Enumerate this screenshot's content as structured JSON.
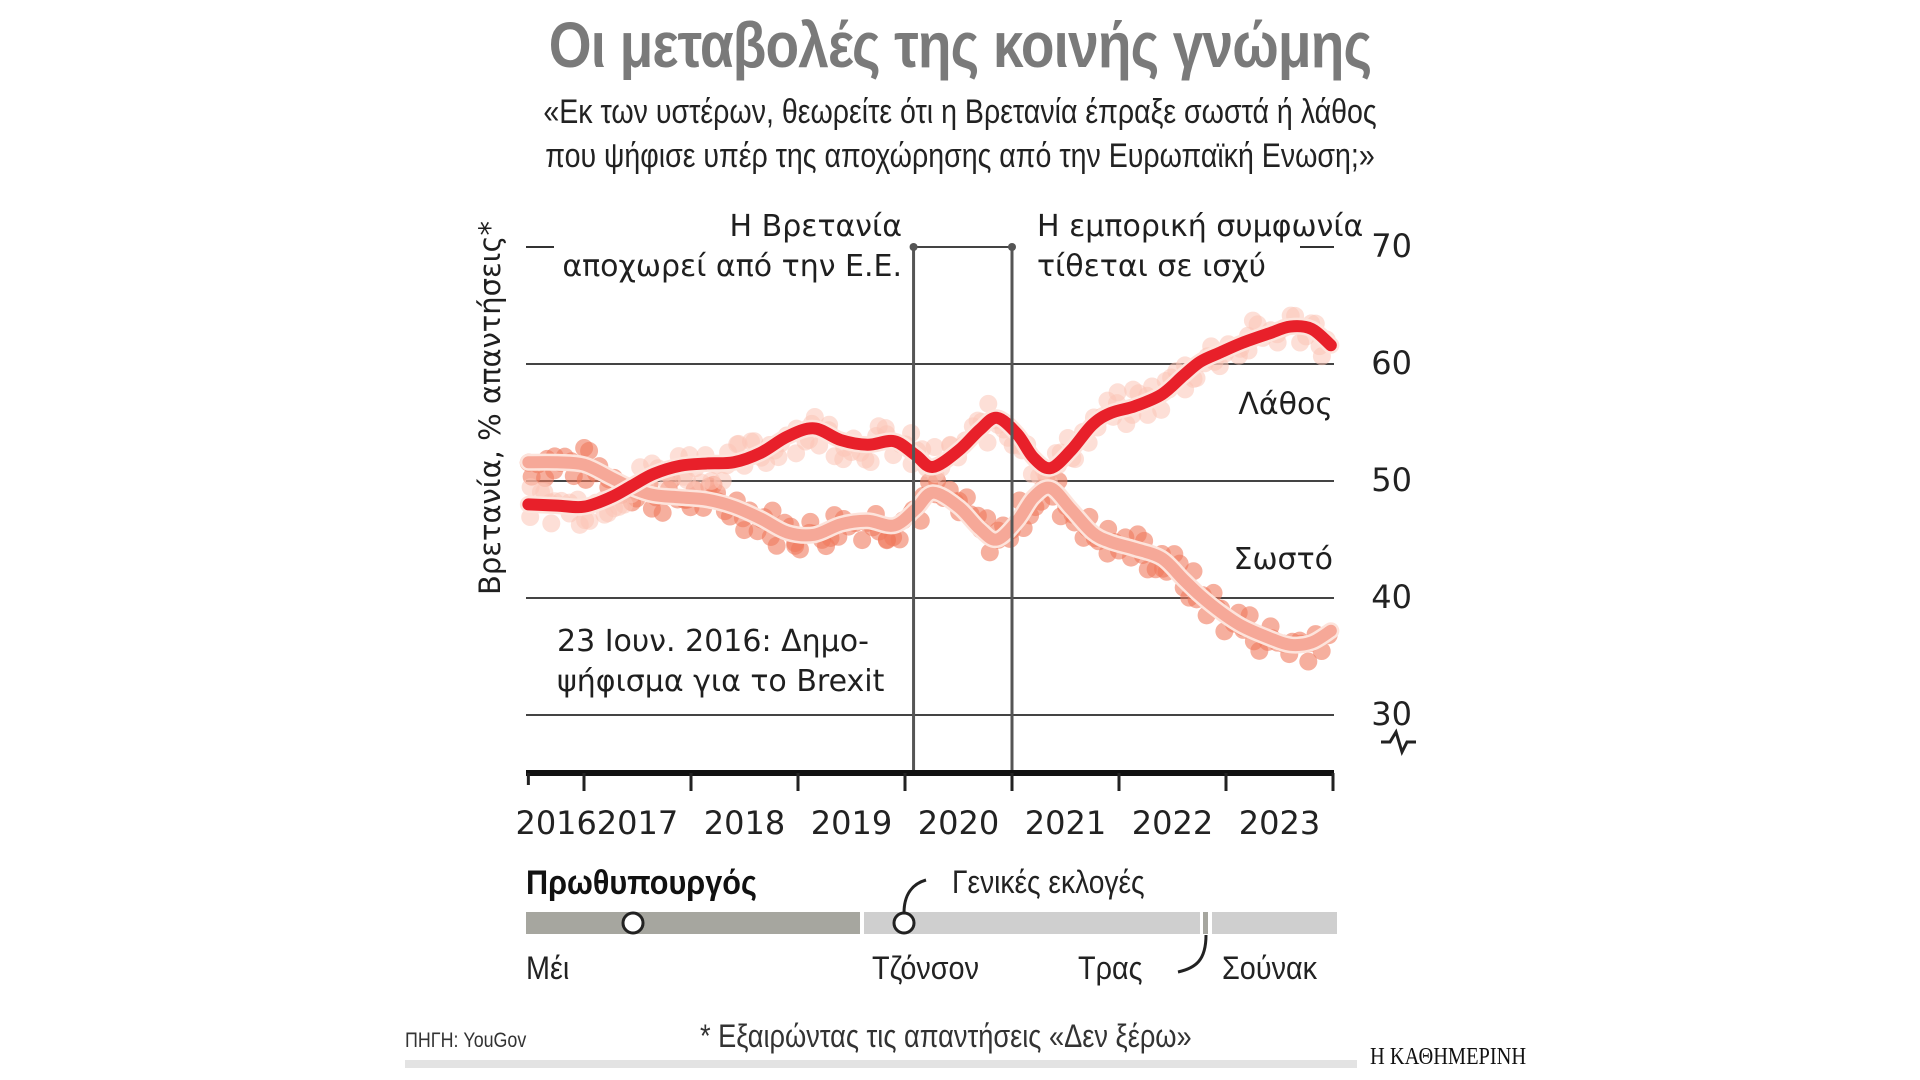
{
  "header": {
    "title": "Οι μεταβολές της κοινής γνώμης",
    "subtitle_line1": "«Εκ των υστέρων, θεωρείτε ότι η Βρετανία έπραξε σωστά ή λάθος",
    "subtitle_line2": "που ψήφισε υπέρ της αποχώρησης από την Ευρωπαϊκή Ενωση;»"
  },
  "chart_data": {
    "type": "line",
    "title": "Οι μεταβολές της κοινής γνώμης",
    "ylabel": "Βρετανία, % απαντήσεις*",
    "xlabel": "",
    "ylim": [
      25,
      70
    ],
    "xlim": [
      2016.48,
      2023.98
    ],
    "yticks": [
      30,
      40,
      50,
      60,
      70
    ],
    "grid": true,
    "year_labels": [
      "2016",
      "2017",
      "2018",
      "2019",
      "2020",
      "2021",
      "2022",
      "2023"
    ],
    "axis_break_icon": "axis-break-zigzag",
    "series": [
      {
        "name": "Λάθος",
        "color": "#e8202a",
        "x": [
          2016.48,
          2016.75,
          2017.0,
          2017.25,
          2017.45,
          2017.65,
          2017.9,
          2018.15,
          2018.4,
          2018.65,
          2018.9,
          2019.15,
          2019.4,
          2019.65,
          2019.9,
          2020.1,
          2020.26,
          2020.5,
          2020.7,
          2020.86,
          2021.05,
          2021.2,
          2021.36,
          2021.55,
          2021.75,
          2021.92,
          2022.15,
          2022.4,
          2022.6,
          2022.76,
          2022.95,
          2023.15,
          2023.4,
          2023.6,
          2023.8,
          2023.98
        ],
        "values": [
          48.0,
          47.9,
          47.8,
          48.6,
          49.6,
          50.6,
          51.3,
          51.5,
          51.6,
          52.4,
          53.8,
          54.5,
          53.5,
          53.1,
          53.4,
          52.2,
          51.2,
          52.6,
          54.4,
          55.4,
          54.0,
          52.0,
          51.1,
          52.6,
          54.8,
          55.8,
          56.4,
          57.4,
          59.0,
          60.2,
          61.0,
          61.8,
          62.6,
          63.2,
          63.0,
          61.6
        ]
      },
      {
        "name": "Σωστό",
        "color": "#f6a898",
        "x": [
          2016.48,
          2016.75,
          2017.0,
          2017.25,
          2017.45,
          2017.65,
          2017.9,
          2018.15,
          2018.4,
          2018.65,
          2018.9,
          2019.15,
          2019.4,
          2019.65,
          2019.9,
          2020.1,
          2020.26,
          2020.5,
          2020.7,
          2020.86,
          2021.05,
          2021.2,
          2021.36,
          2021.55,
          2021.75,
          2021.92,
          2022.15,
          2022.4,
          2022.6,
          2022.76,
          2022.95,
          2023.15,
          2023.4,
          2023.6,
          2023.8,
          2023.98
        ],
        "values": [
          51.6,
          51.6,
          51.4,
          50.3,
          49.4,
          48.8,
          48.6,
          48.4,
          47.8,
          46.8,
          45.6,
          45.4,
          46.3,
          46.6,
          46.2,
          47.6,
          49.0,
          47.8,
          45.9,
          45.0,
          46.6,
          48.6,
          49.4,
          47.6,
          45.6,
          44.8,
          44.2,
          43.4,
          41.6,
          40.2,
          38.8,
          37.6,
          36.6,
          36.0,
          36.2,
          37.2
        ]
      }
    ],
    "series_labels": {
      "wrong": "Λάθος",
      "right": "Σωστό"
    },
    "annotations": {
      "leave_line1": "Η Βρετανία",
      "leave_line2": "αποχωρεί από την Ε.Ε.",
      "trade_line1": "Η εμπορική συμφωνία",
      "trade_line2": "τίθεται σε ισχύ",
      "referendum_line1": "23 Ιουν. 2016: Δημο-",
      "referendum_line2": "ψήφισμα για το Brexit"
    },
    "event_markers": [
      2020.08,
      2021.0
    ]
  },
  "prime_ministers": {
    "title": "Πρωθυπουργός",
    "election_label": "Γενικές εκλογές",
    "names": [
      "Μέι",
      "Τζόνσον",
      "Τρας",
      "Σούνακ"
    ]
  },
  "footer": {
    "source": "ΠΗΓΗ: YouGov",
    "note": "* Εξαιρώντας τις απαντήσεις «Δεν ξέρω»",
    "brand": "Η ΚΑΘΗΜΕΡΙΝΗ"
  }
}
